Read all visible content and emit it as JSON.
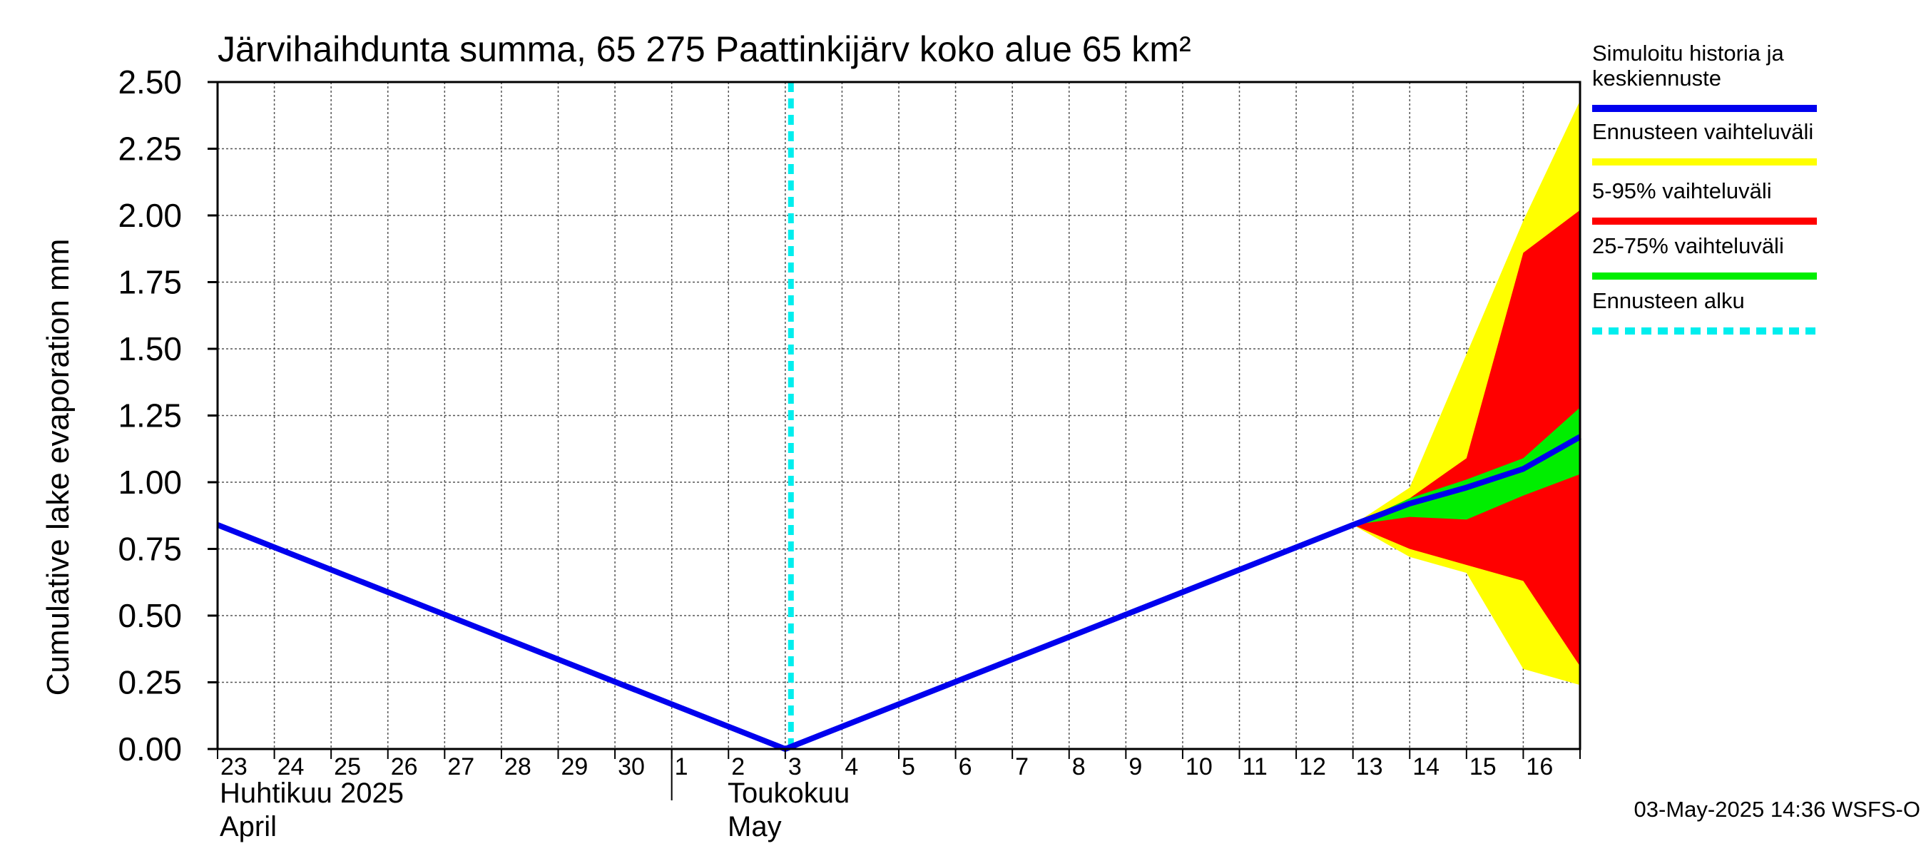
{
  "chart_data": {
    "type": "area",
    "title": "Järvihaihdunta summa, 65 275 Paattinkijärv koko alue 65 km²",
    "ylabel": "Cumulative lake evaporation   mm",
    "ylim": [
      0,
      2.5
    ],
    "yticks": [
      0,
      0.25,
      0.5,
      0.75,
      1.0,
      1.25,
      1.5,
      1.75,
      2.0,
      2.25,
      2.5
    ],
    "ytick_labels": [
      "0.00",
      "0.25",
      "0.50",
      "0.75",
      "1.00",
      "1.25",
      "1.50",
      "1.75",
      "2.00",
      "2.25",
      "2.50"
    ],
    "xlim": [
      "2025-04-23",
      "2025-05-17"
    ],
    "xtick_labels": [
      "23",
      "24",
      "25",
      "26",
      "27",
      "28",
      "29",
      "30",
      "1",
      "2",
      "3",
      "4",
      "5",
      "6",
      "7",
      "8",
      "9",
      "10",
      "11",
      "12",
      "13",
      "14",
      "15",
      "16"
    ],
    "grid": true,
    "month_labels": {
      "april_fi": "Huhtikuu  2025",
      "april_en": "April",
      "may_fi": "Toukokuu",
      "may_en": "May"
    },
    "forecast_start": "2025-05-03",
    "series": [
      {
        "name": "Simuloitu historia ja keskiennuste",
        "color": "#0000ee",
        "points": [
          [
            "2025-04-23",
            0.84
          ],
          [
            "2025-05-03",
            0.0
          ],
          [
            "2025-05-13",
            0.84
          ],
          [
            "2025-05-14",
            0.92
          ],
          [
            "2025-05-15",
            0.98
          ],
          [
            "2025-05-16",
            1.05
          ],
          [
            "2025-05-17",
            1.17
          ]
        ]
      }
    ],
    "bands": [
      {
        "name": "Ennusteen vaihteluväli",
        "color": "#ffff00",
        "x": [
          "2025-05-13",
          "2025-05-14",
          "2025-05-15",
          "2025-05-16",
          "2025-05-17"
        ],
        "low": [
          0.84,
          0.72,
          0.66,
          0.3,
          0.24
        ],
        "high": [
          0.84,
          0.98,
          1.48,
          1.98,
          2.43
        ]
      },
      {
        "name": "5-95% vaihteluväli",
        "color": "#ff0000",
        "x": [
          "2025-05-13",
          "2025-05-14",
          "2025-05-15",
          "2025-05-16",
          "2025-05-17"
        ],
        "low": [
          0.84,
          0.75,
          0.69,
          0.63,
          0.31
        ],
        "high": [
          0.84,
          0.94,
          1.09,
          1.86,
          2.02
        ]
      },
      {
        "name": "25-75% vaihteluväli",
        "color": "#00ee00",
        "x": [
          "2025-05-13",
          "2025-05-14",
          "2025-05-15",
          "2025-05-16",
          "2025-05-17"
        ],
        "low": [
          0.84,
          0.87,
          0.86,
          0.95,
          1.03
        ],
        "high": [
          0.84,
          0.94,
          1.01,
          1.09,
          1.28
        ]
      }
    ],
    "legend": {
      "placement": "right",
      "entries": [
        {
          "label": "Simuloitu historia ja keskiennuste",
          "lines": [
            "Simuloitu historia ja",
            "keskiennuste"
          ],
          "color": "#0000ee",
          "style": "solid"
        },
        {
          "label": "Ennusteen vaihteluväli",
          "lines": [
            "Ennusteen vaihteluväli"
          ],
          "color": "#ffff00",
          "style": "solid"
        },
        {
          "label": "5-95% vaihteluväli",
          "lines": [
            "5-95% vaihteluväli"
          ],
          "color": "#ff0000",
          "style": "solid"
        },
        {
          "label": "25-75% vaihteluväli",
          "lines": [
            "25-75% vaihteluväli"
          ],
          "color": "#00ee00",
          "style": "solid"
        },
        {
          "label": "Ennusteen alku",
          "lines": [
            "Ennusteen alku"
          ],
          "color": "#00eeee",
          "style": "dashed"
        }
      ]
    },
    "timestamp": "03-May-2025 14:36 WSFS-O"
  }
}
